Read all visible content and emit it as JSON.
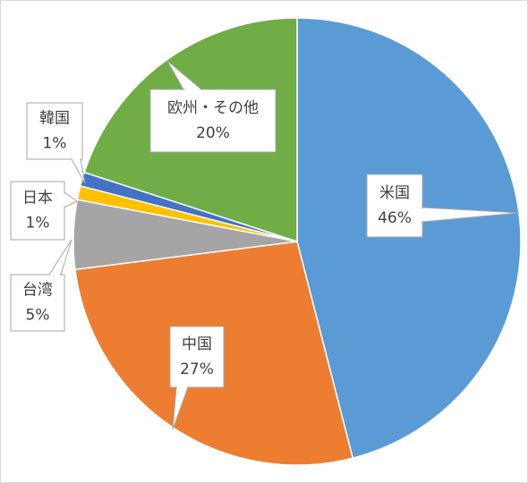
{
  "chart_data": {
    "type": "pie",
    "categories": [
      "米国",
      "中国",
      "台湾",
      "日本",
      "韓国",
      "欧州・その他"
    ],
    "values": [
      46,
      27,
      5,
      1,
      1,
      20
    ],
    "value_labels": [
      "46%",
      "27%",
      "5%",
      "1%",
      "1%",
      "20%"
    ],
    "colors": [
      "#5b9bd5",
      "#ed7d31",
      "#a5a5a5",
      "#ffc000",
      "#4472c4",
      "#70ad47"
    ]
  }
}
